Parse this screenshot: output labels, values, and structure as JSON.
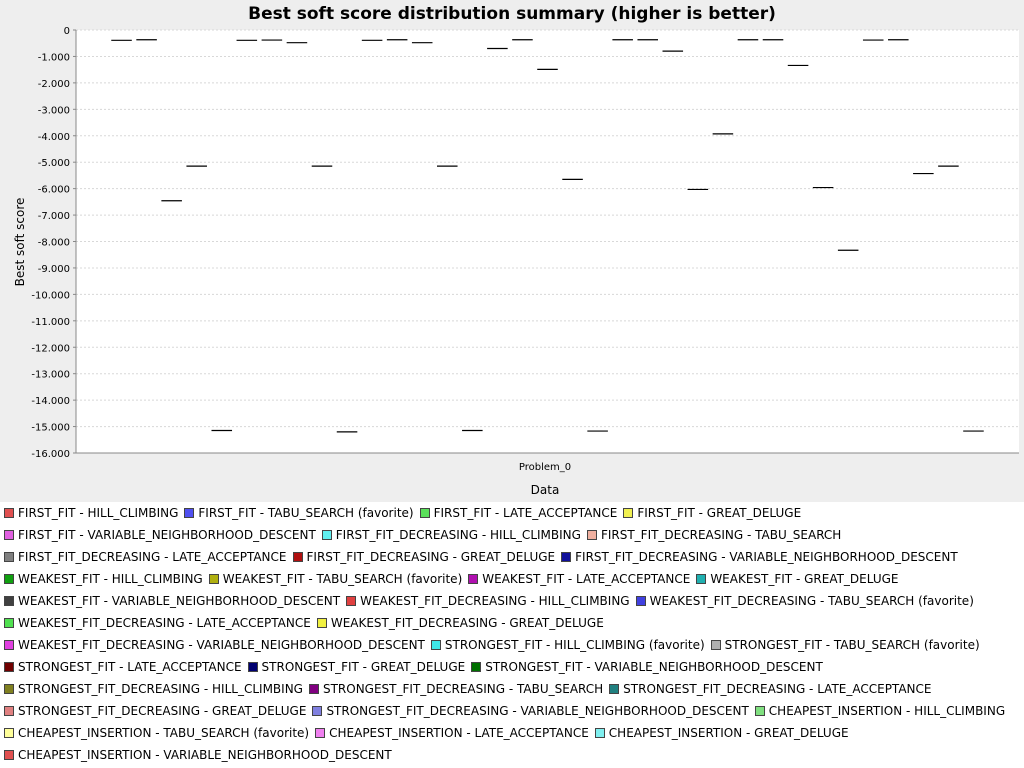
{
  "chart_data": {
    "type": "boxplot",
    "title": "Best soft score distribution summary (higher is better)",
    "xlabel": "Data",
    "ylabel": "Best soft score",
    "categories": [
      "Problem_0"
    ],
    "ylim": [
      -16000,
      0
    ],
    "yticks": [
      {
        "value": 0,
        "label": "0"
      },
      {
        "value": -1000,
        "label": "-1.000"
      },
      {
        "value": -2000,
        "label": "-2.000"
      },
      {
        "value": -3000,
        "label": "-3.000"
      },
      {
        "value": -4000,
        "label": "-4.000"
      },
      {
        "value": -5000,
        "label": "-5.000"
      },
      {
        "value": -6000,
        "label": "-6.000"
      },
      {
        "value": -7000,
        "label": "-7.000"
      },
      {
        "value": -8000,
        "label": "-8.000"
      },
      {
        "value": -9000,
        "label": "-9.000"
      },
      {
        "value": -10000,
        "label": "-10.000"
      },
      {
        "value": -11000,
        "label": "-11.000"
      },
      {
        "value": -12000,
        "label": "-12.000"
      },
      {
        "value": -13000,
        "label": "-13.000"
      },
      {
        "value": -14000,
        "label": "-14.000"
      },
      {
        "value": -15000,
        "label": "-15.000"
      },
      {
        "value": -16000,
        "label": "-16.000"
      }
    ],
    "grid": true,
    "legend_position": "bottom",
    "series": [
      {
        "name": "FIRST_FIT - HILL_CLIMBING",
        "color": "#e05050",
        "values": [
          -390
        ]
      },
      {
        "name": "FIRST_FIT - TABU_SEARCH (favorite)",
        "color": "#5050f0",
        "values": [
          -370
        ]
      },
      {
        "name": "FIRST_FIT - LATE_ACCEPTANCE",
        "color": "#5ae05a",
        "values": [
          -6460
        ]
      },
      {
        "name": "FIRST_FIT - GREAT_DELUGE",
        "color": "#f0f050",
        "values": [
          -5150
        ]
      },
      {
        "name": "FIRST_FIT - VARIABLE_NEIGHBORHOOD_DESCENT",
        "color": "#e060e0",
        "values": [
          -15150
        ]
      },
      {
        "name": "FIRST_FIT_DECREASING - HILL_CLIMBING",
        "color": "#60f0f0",
        "values": [
          -390
        ]
      },
      {
        "name": "FIRST_FIT_DECREASING - TABU_SEARCH",
        "color": "#f0b0a0",
        "values": [
          -380
        ]
      },
      {
        "name": "FIRST_FIT_DECREASING - LATE_ACCEPTANCE",
        "color": "#808080",
        "values": [
          -480
        ]
      },
      {
        "name": "FIRST_FIT_DECREASING - GREAT_DELUGE",
        "color": "#b01010",
        "values": [
          -5150
        ]
      },
      {
        "name": "FIRST_FIT_DECREASING - VARIABLE_NEIGHBORHOOD_DESCENT",
        "color": "#10109a",
        "values": [
          -15200
        ]
      },
      {
        "name": "WEAKEST_FIT - HILL_CLIMBING",
        "color": "#10a010",
        "values": [
          -390
        ]
      },
      {
        "name": "WEAKEST_FIT - TABU_SEARCH (favorite)",
        "color": "#b0b010",
        "values": [
          -370
        ]
      },
      {
        "name": "WEAKEST_FIT - LATE_ACCEPTANCE",
        "color": "#b010b0",
        "values": [
          -480
        ]
      },
      {
        "name": "WEAKEST_FIT - GREAT_DELUGE",
        "color": "#20b0b0",
        "values": [
          -5150
        ]
      },
      {
        "name": "WEAKEST_FIT - VARIABLE_NEIGHBORHOOD_DESCENT",
        "color": "#404040",
        "values": [
          -15150
        ]
      },
      {
        "name": "WEAKEST_FIT_DECREASING - HILL_CLIMBING",
        "color": "#e04040",
        "values": [
          -700
        ]
      },
      {
        "name": "WEAKEST_FIT_DECREASING - TABU_SEARCH (favorite)",
        "color": "#4040e0",
        "values": [
          -370
        ]
      },
      {
        "name": "WEAKEST_FIT_DECREASING - LATE_ACCEPTANCE",
        "color": "#50e050",
        "values": [
          -1490
        ]
      },
      {
        "name": "WEAKEST_FIT_DECREASING - GREAT_DELUGE",
        "color": "#f0f040",
        "values": [
          -5650
        ]
      },
      {
        "name": "WEAKEST_FIT_DECREASING - VARIABLE_NEIGHBORHOOD_DESCENT",
        "color": "#e040e0",
        "values": [
          -15170
        ]
      },
      {
        "name": "STRONGEST_FIT - HILL_CLIMBING (favorite)",
        "color": "#40e8e8",
        "values": [
          -370
        ]
      },
      {
        "name": "STRONGEST_FIT - TABU_SEARCH (favorite)",
        "color": "#b0b0b0",
        "values": [
          -370
        ]
      },
      {
        "name": "STRONGEST_FIT - LATE_ACCEPTANCE",
        "color": "#700000",
        "values": [
          -800
        ]
      },
      {
        "name": "STRONGEST_FIT - GREAT_DELUGE",
        "color": "#000070",
        "values": [
          -6030
        ]
      },
      {
        "name": "STRONGEST_FIT - VARIABLE_NEIGHBORHOOD_DESCENT",
        "color": "#007000",
        "values": [
          -3930
        ]
      },
      {
        "name": "STRONGEST_FIT_DECREASING - HILL_CLIMBING",
        "color": "#808020",
        "values": [
          -370
        ]
      },
      {
        "name": "STRONGEST_FIT_DECREASING - TABU_SEARCH",
        "color": "#800080",
        "values": [
          -370
        ]
      },
      {
        "name": "STRONGEST_FIT_DECREASING - LATE_ACCEPTANCE",
        "color": "#208080",
        "values": [
          -1340
        ]
      },
      {
        "name": "STRONGEST_FIT_DECREASING - GREAT_DELUGE",
        "color": "#e08080",
        "values": [
          -5960
        ]
      },
      {
        "name": "STRONGEST_FIT_DECREASING - VARIABLE_NEIGHBORHOOD_DESCENT",
        "color": "#8080e0",
        "values": [
          -8330
        ]
      },
      {
        "name": "CHEAPEST_INSERTION - HILL_CLIMBING",
        "color": "#80e080",
        "values": [
          -380
        ]
      },
      {
        "name": "CHEAPEST_INSERTION - TABU_SEARCH (favorite)",
        "color": "#ffff99",
        "values": [
          -370
        ]
      },
      {
        "name": "CHEAPEST_INSERTION - LATE_ACCEPTANCE",
        "color": "#f080f0",
        "values": [
          -5430
        ]
      },
      {
        "name": "CHEAPEST_INSERTION - GREAT_DELUGE",
        "color": "#80f0f0",
        "values": [
          -5150
        ]
      },
      {
        "name": "CHEAPEST_INSERTION - VARIABLE_NEIGHBORHOOD_DESCENT",
        "color": "#e05050",
        "values": [
          -15170
        ]
      }
    ]
  }
}
